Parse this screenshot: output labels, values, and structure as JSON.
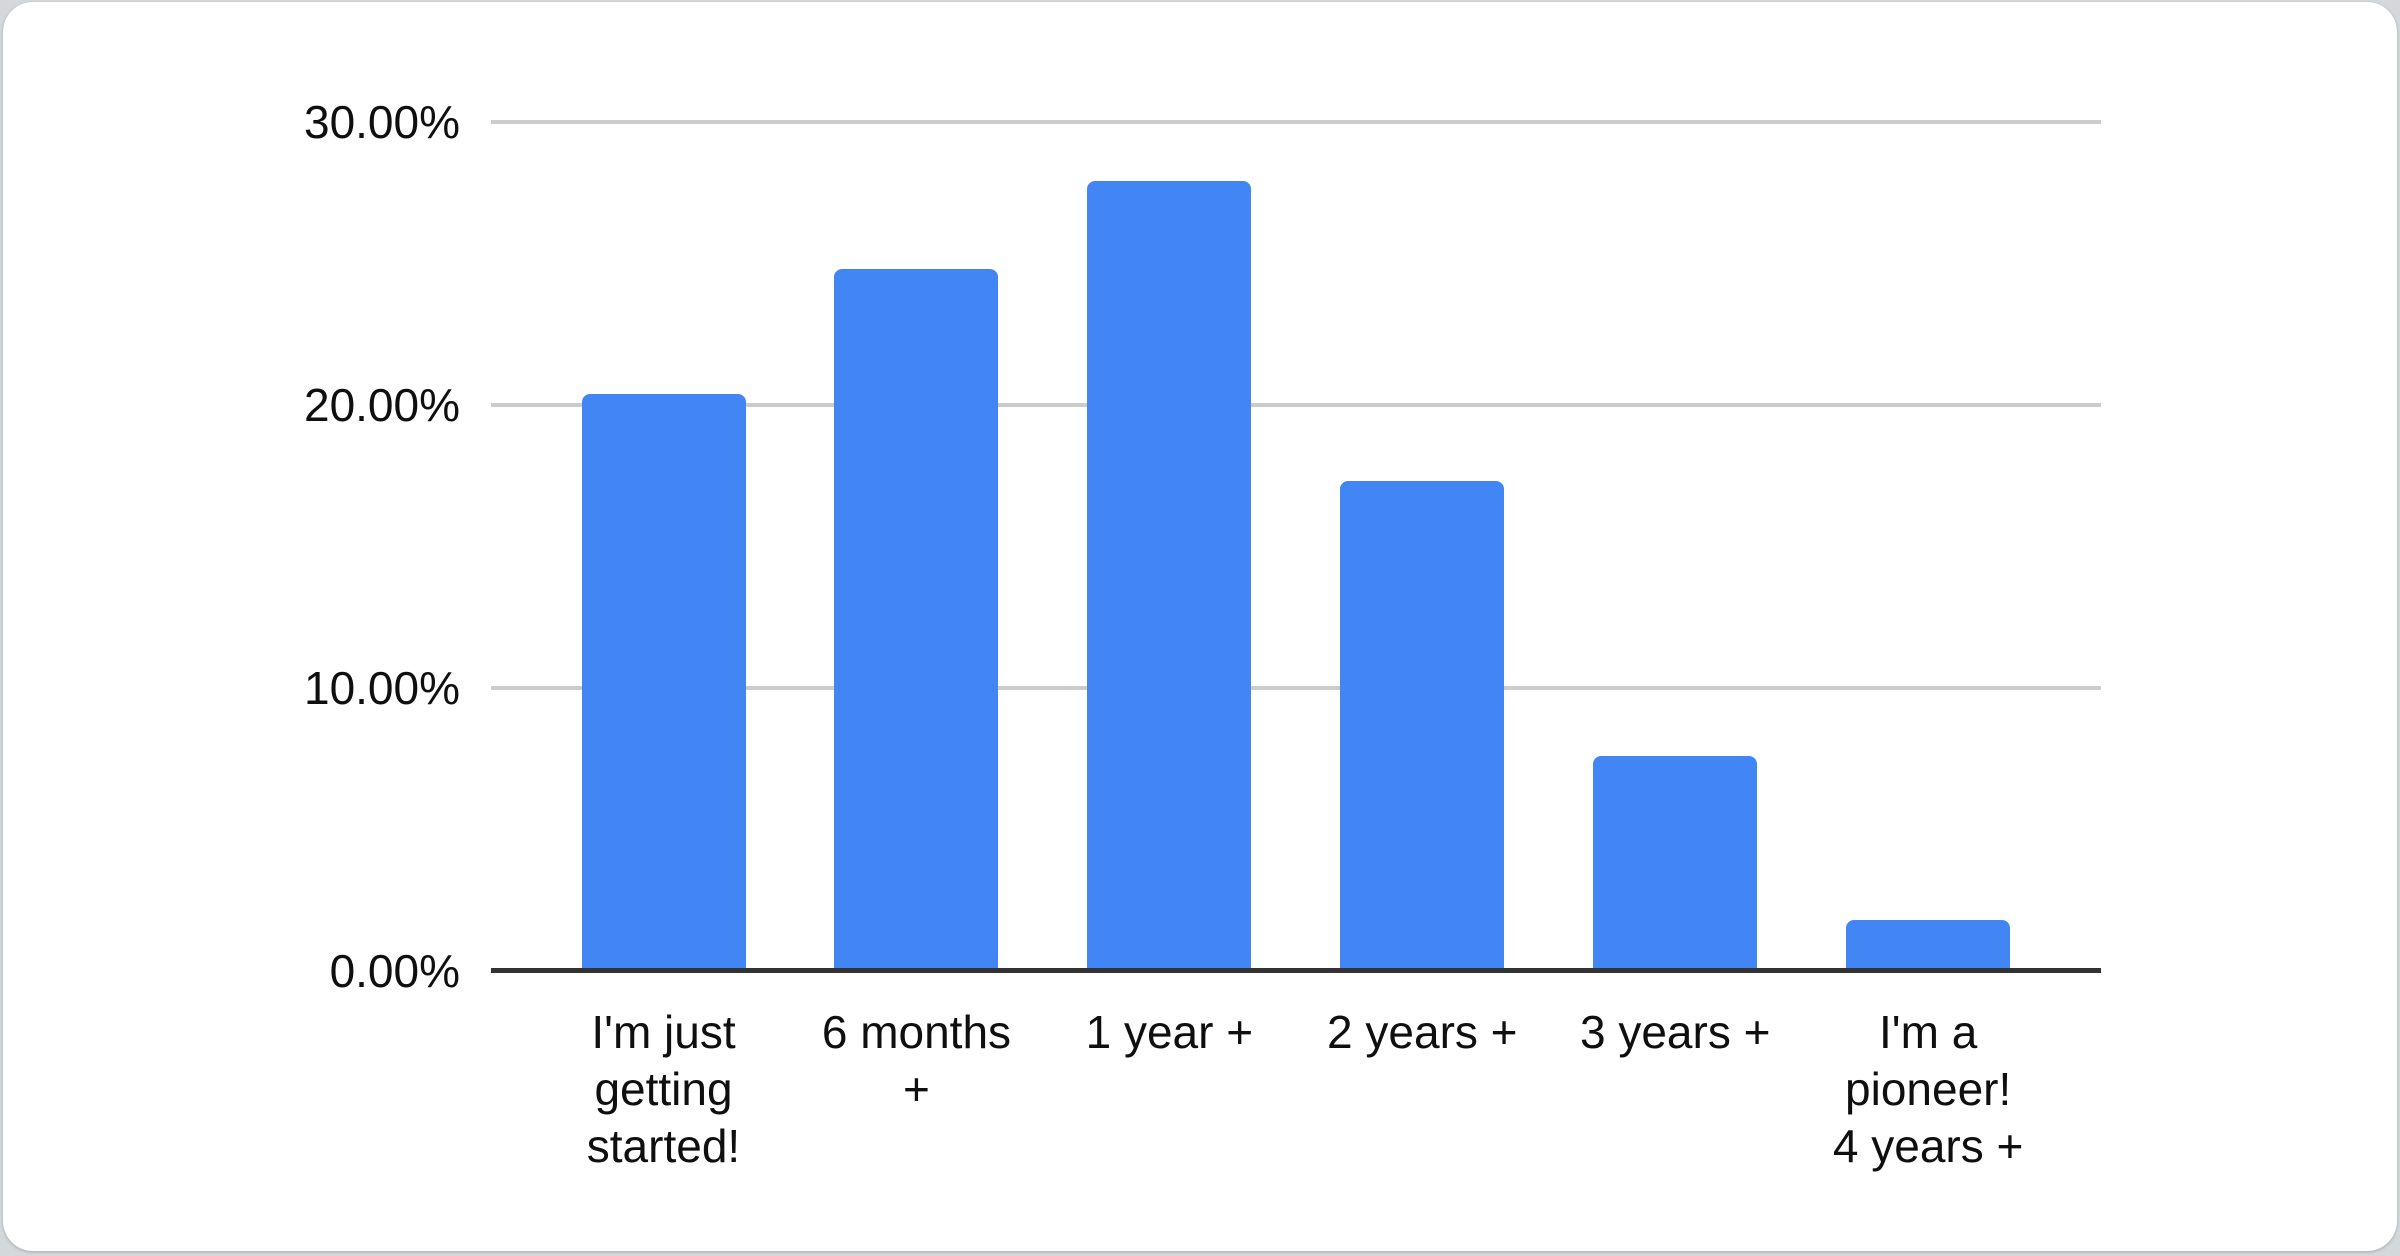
{
  "page": {
    "background_color": "#d4d8db",
    "card_background": "#ffffff"
  },
  "chart_data": {
    "type": "bar",
    "title": "",
    "categories": [
      "I'm just getting started!",
      "6 months +",
      "1 year +",
      "2 years +",
      "3 years +",
      "I'm a pioneer! 4 years +"
    ],
    "values": [
      20.4,
      24.8,
      27.9,
      17.3,
      7.6,
      1.8
    ],
    "value_unit": "percent",
    "series_name": "",
    "xlabel": "",
    "ylabel": "",
    "ylim": [
      0,
      30
    ],
    "yticks": [
      {
        "value": 0,
        "label": "0.00%"
      },
      {
        "value": 10,
        "label": "10.00%"
      },
      {
        "value": 20,
        "label": "20.00%"
      },
      {
        "value": 30,
        "label": "30.00%"
      }
    ],
    "grid": true,
    "legend_position": "none",
    "bar_color": "#4285f4",
    "gridline_color": "#cccccc",
    "axis_line_color": "#333333",
    "label_color": "#0f0f0f"
  }
}
